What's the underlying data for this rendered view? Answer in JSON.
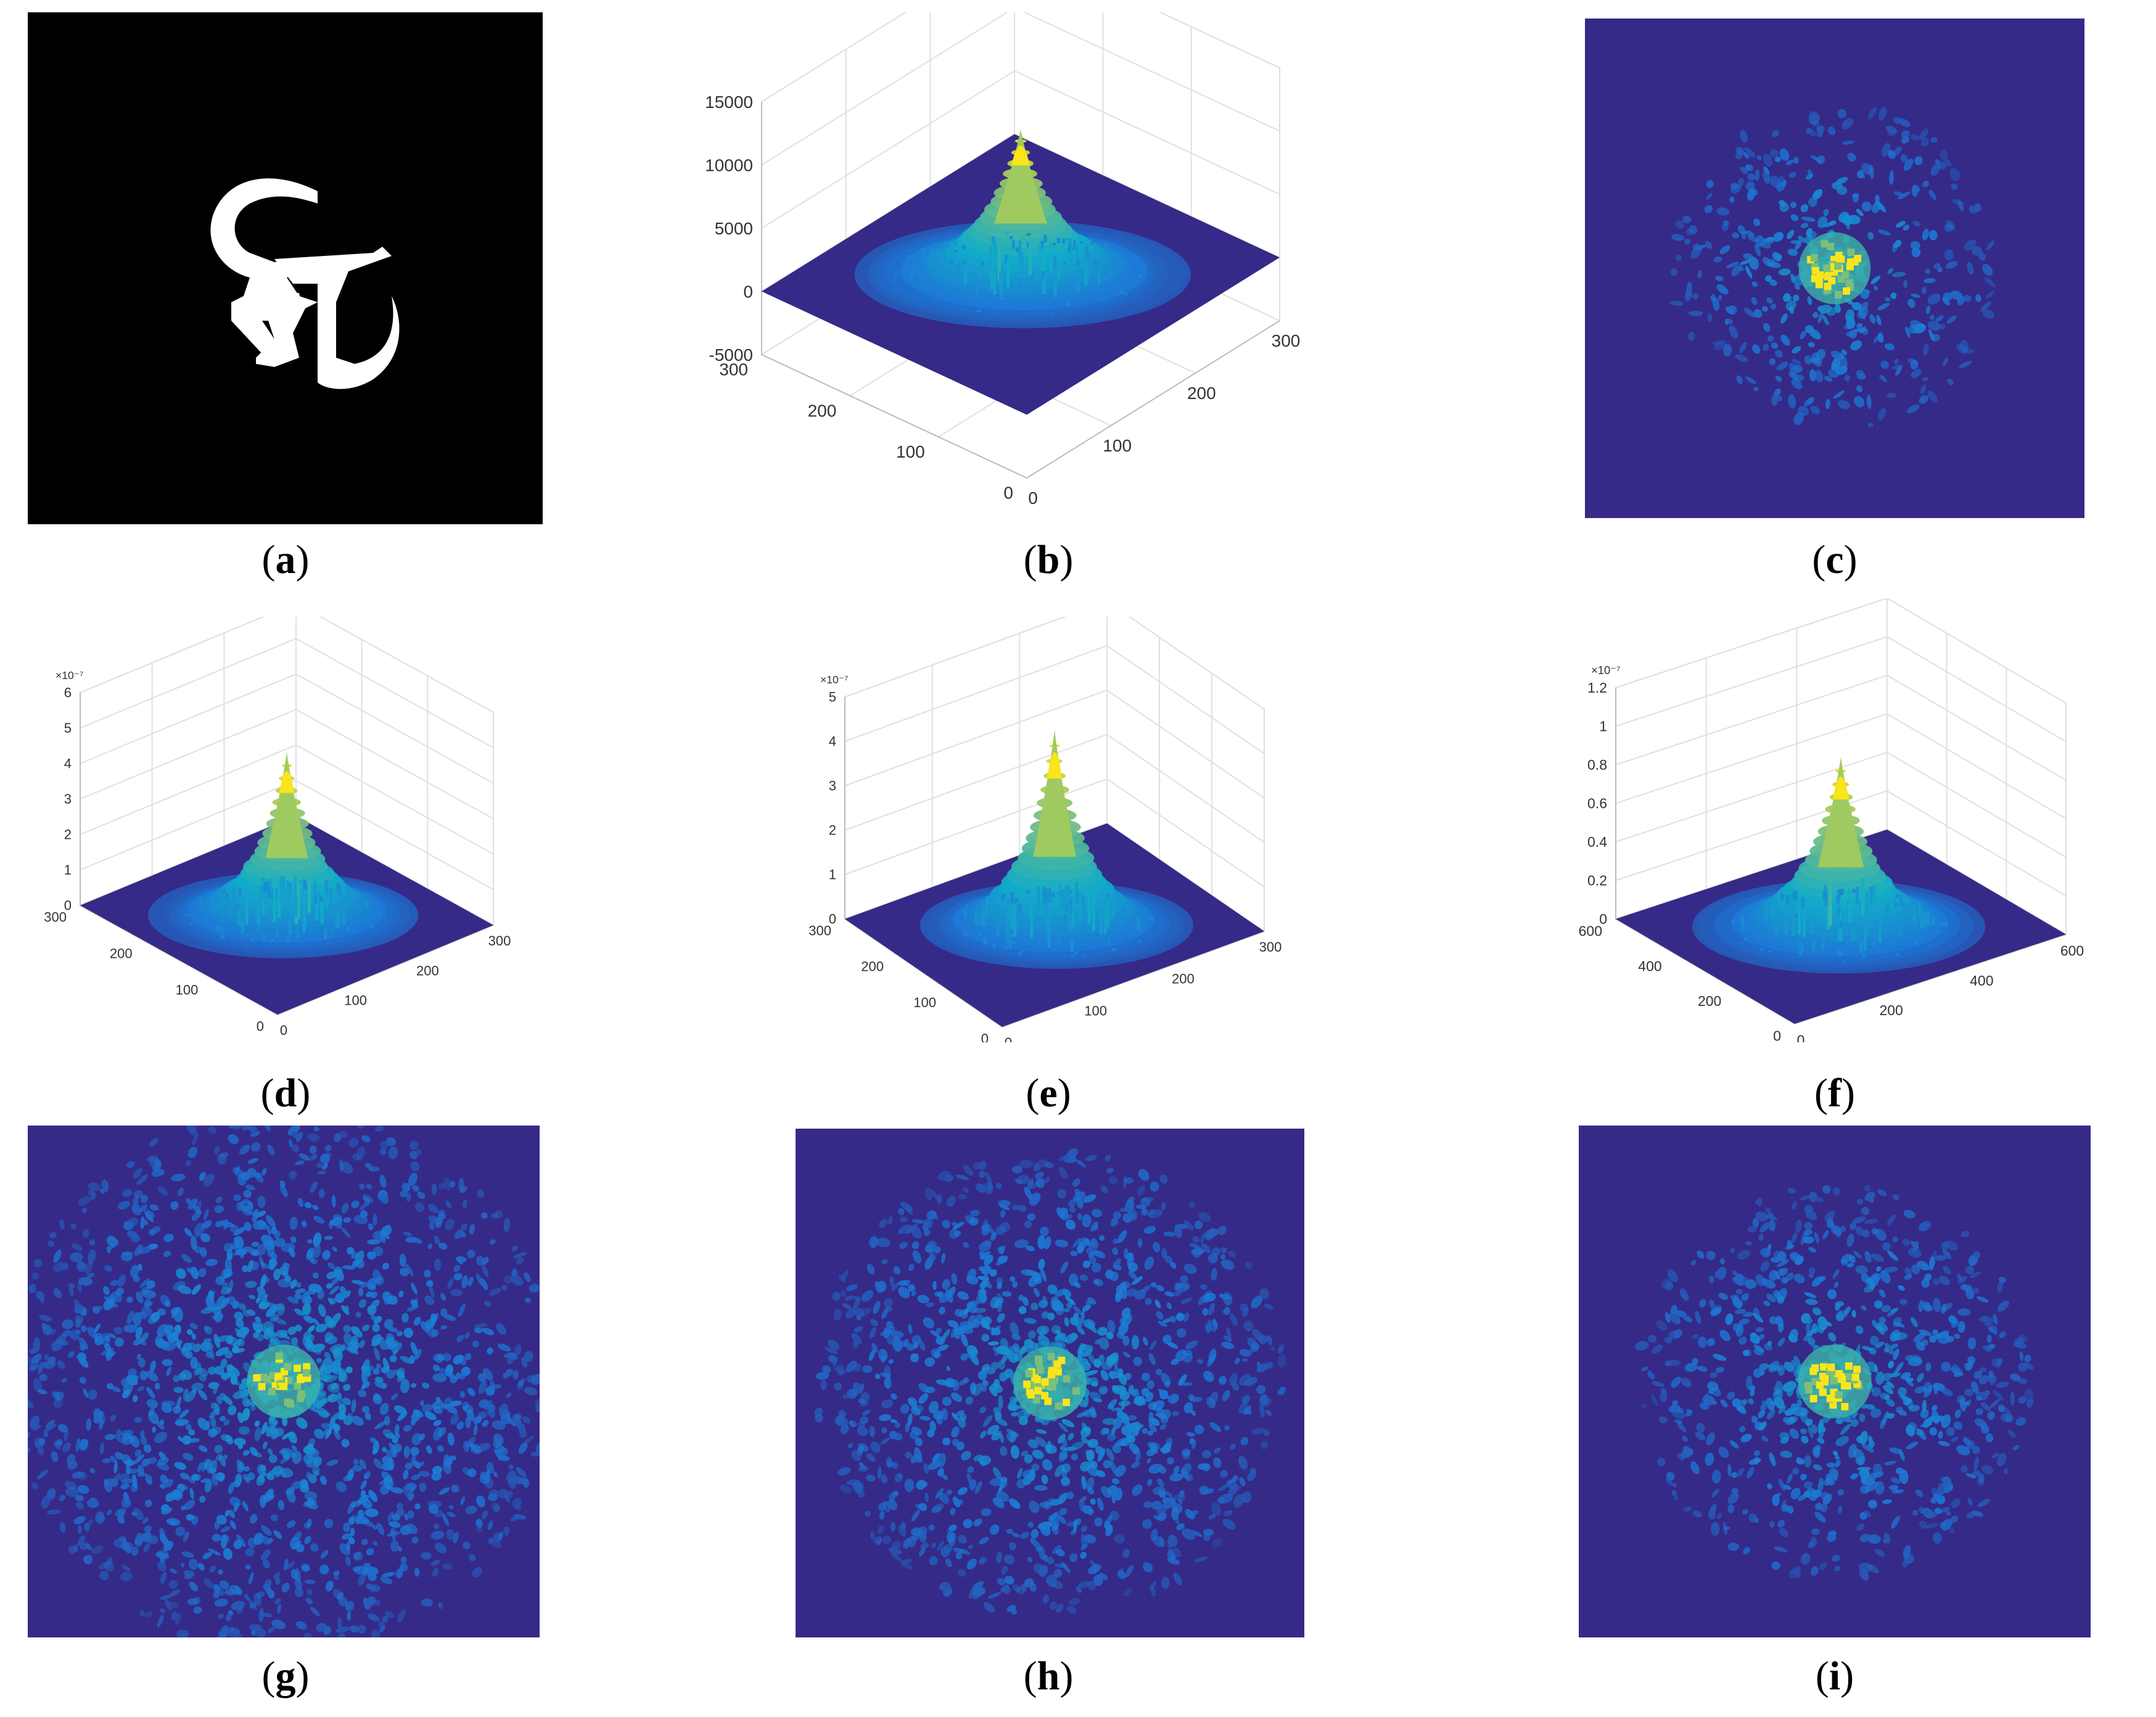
{
  "colors": {
    "background_dark": "#352a87",
    "surface_low": "#2c3c9a",
    "surface_mid": "#1d78d6",
    "surface_high": "#33b7a0",
    "surface_peak": "#f9e51a",
    "binary_background": "#000000",
    "binary_foreground": "#ffffff",
    "grid": "#e0e0e0",
    "axis_text": "#333333"
  },
  "captions": {
    "a": "a",
    "b": "b",
    "c": "c",
    "d": "d",
    "e": "e",
    "f": "f",
    "g": "g",
    "h": "h",
    "i": "i"
  },
  "chart_data": [
    {
      "id": "b",
      "type": "surface",
      "z_ticks": [
        "15000",
        "10000",
        "5000",
        "0",
        "-5000"
      ],
      "zlim": [
        -5000,
        15000
      ],
      "x_ticks": [
        "0",
        "100",
        "200",
        "300"
      ],
      "y_ticks": [
        "0",
        "100",
        "200",
        "300"
      ],
      "xlim": [
        0,
        300
      ],
      "ylim": [
        0,
        300
      ],
      "z_exponent": "",
      "peak_z": 11500,
      "base_z": 0,
      "grid": true
    },
    {
      "id": "d",
      "type": "surface",
      "z_ticks": [
        "6",
        "5",
        "4",
        "3",
        "2",
        "1",
        "0"
      ],
      "zlim": [
        0,
        6
      ],
      "x_ticks": [
        "0",
        "100",
        "200",
        "300"
      ],
      "y_ticks": [
        "0",
        "100",
        "200",
        "300"
      ],
      "xlim": [
        0,
        300
      ],
      "ylim": [
        0,
        300
      ],
      "z_exponent": "×10⁻⁷",
      "peak_z": 4.6,
      "base_z": 0,
      "grid": true
    },
    {
      "id": "e",
      "type": "surface",
      "z_ticks": [
        "5",
        "4",
        "3",
        "2",
        "1",
        "0"
      ],
      "zlim": [
        0,
        5
      ],
      "x_ticks": [
        "0",
        "100",
        "200",
        "300"
      ],
      "y_ticks": [
        "0",
        "100",
        "200",
        "300"
      ],
      "xlim": [
        0,
        300
      ],
      "ylim": [
        0,
        300
      ],
      "z_exponent": "×10⁻⁷",
      "peak_z": 4.4,
      "base_z": 0,
      "grid": true
    },
    {
      "id": "f",
      "type": "surface",
      "z_ticks": [
        "1.2",
        "1",
        "0.8",
        "0.6",
        "0.4",
        "0.2",
        "0"
      ],
      "zlim": [
        0,
        1.2
      ],
      "x_ticks": [
        "0",
        "200",
        "400",
        "600"
      ],
      "y_ticks": [
        "0",
        "200",
        "400",
        "600"
      ],
      "xlim": [
        0,
        600
      ],
      "ylim": [
        0,
        600
      ],
      "z_exponent": "×10⁻⁷",
      "peak_z": 0.88,
      "base_z": 0,
      "grid": true
    },
    {
      "id": "c",
      "type": "heatmap",
      "description_level": 0.25
    },
    {
      "id": "g",
      "type": "heatmap",
      "description_level": 0.95
    },
    {
      "id": "h",
      "type": "heatmap",
      "description_level": 0.7
    },
    {
      "id": "i",
      "type": "heatmap",
      "description_level": 0.45
    }
  ]
}
